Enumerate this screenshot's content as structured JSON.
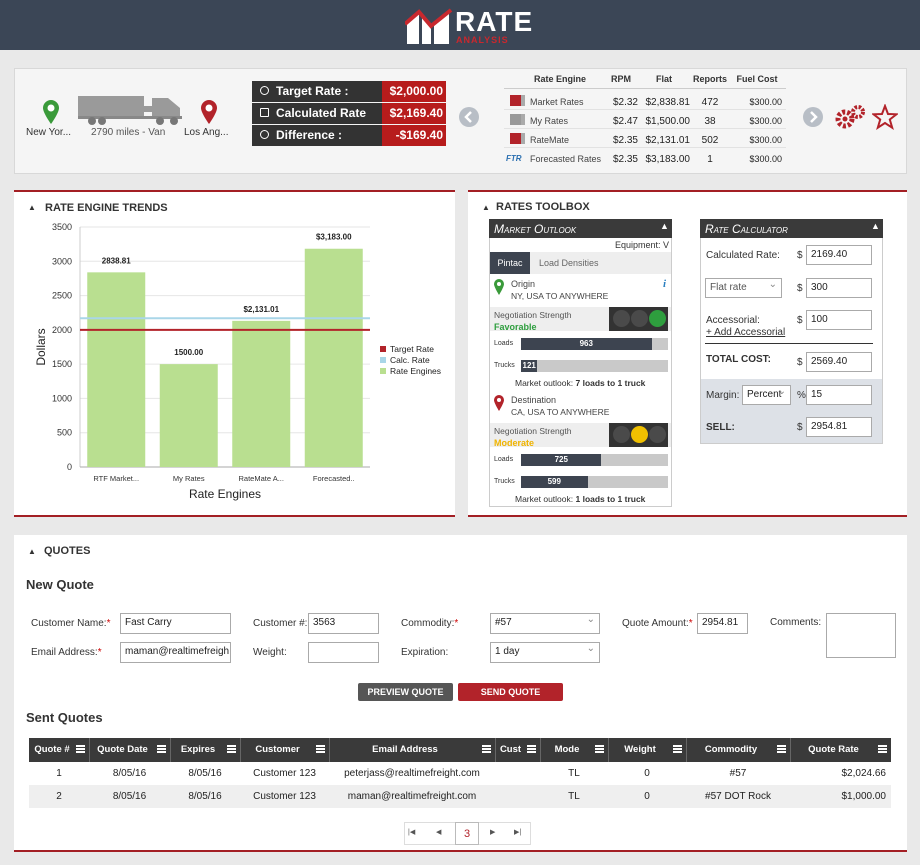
{
  "header": {
    "logo": "RATE",
    "logo_sub": "ANALYSIS"
  },
  "route": {
    "origin": "New Yor...",
    "distance": "2790 miles - Van",
    "destination": "Los Ang..."
  },
  "rates": [
    {
      "label": "Target Rate :",
      "value": "$2,000.00"
    },
    {
      "label": "Calculated Rate",
      "value": "$2,169.40"
    },
    {
      "label": "Difference :",
      "value": "-$169.40"
    }
  ],
  "engines": {
    "columns": [
      "Rate Engine",
      "RPM",
      "Flat",
      "Reports",
      "Fuel Cost"
    ],
    "rows": [
      {
        "name": "Market Rates",
        "rpm": "$2.32",
        "flat": "$2,838.81",
        "reports": 472,
        "fuel": "$300.00"
      },
      {
        "name": "My Rates",
        "rpm": "$2.47",
        "flat": "$1,500.00",
        "reports": 38,
        "fuel": "$300.00"
      },
      {
        "name": "RateMate",
        "rpm": "$2.35",
        "flat": "$2,131.01",
        "reports": 502,
        "fuel": "$300.00"
      },
      {
        "name": "Forecasted Rates",
        "rpm": "$2.35",
        "flat": "$3,183.00",
        "reports": 1,
        "fuel": "$300.00",
        "badge": "FTR"
      }
    ]
  },
  "chart_data": {
    "type": "bar",
    "title": "RATE ENGINE TRENDS",
    "x_label": "Rate Engines",
    "y_label": "Dollars",
    "categories": [
      "RTF Market...",
      "My Rates",
      "RateMate A...",
      "Forecasted.."
    ],
    "series": [
      {
        "name": "Rate Engines",
        "color": "#b9df90",
        "values": [
          2838.81,
          1500,
          2131.01,
          3183
        ],
        "value_labels": [
          "2838.81",
          "1500.00",
          "$2,131.01",
          "$3,183.00"
        ]
      }
    ],
    "reference_lines": [
      {
        "name": "Target Rate",
        "value": 2000,
        "color": "#b2232a"
      },
      {
        "name": "Calc. Rate",
        "value": 2169.4,
        "color": "#a9d6e8"
      }
    ],
    "ylim": [
      0,
      3500
    ],
    "yticks": [
      0,
      500,
      1000,
      1500,
      2000,
      2500,
      3000,
      3500
    ],
    "grid": true
  },
  "toolbox": {
    "title": "RATES TOOLBOX",
    "outlook": {
      "title": "Market Outlook",
      "equipment": "Equipment: V",
      "tabs": [
        "Pintac",
        "Load Densities"
      ],
      "info": "i",
      "lanes": [
        {
          "label": "Origin",
          "place": "NY, USA TO ANYWHERE",
          "pin_color": "#3a9a3a",
          "strength_label": "Negotiation Strength",
          "strength": "Favorable",
          "strength_color": "#2e9e3e",
          "light": 2,
          "loads_label": "Loads",
          "loads": 963,
          "trucks_label": "Trucks",
          "trucks": 121,
          "outlook_label": "Market outlook:",
          "outlook": "7 loads to 1 truck"
        },
        {
          "label": "Destination",
          "place": "CA, USA TO ANYWHERE",
          "pin_color": "#b2232a",
          "strength_label": "Negotiation Strength",
          "strength": "Moderate",
          "strength_color": "#f0b400",
          "light": 1,
          "loads_label": "Loads",
          "loads": 725,
          "trucks_label": "Trucks",
          "trucks": 599,
          "outlook_label": "Market outlook:",
          "outlook": "1 loads to 1 truck"
        }
      ]
    },
    "calculator": {
      "title": "Rate Calculator",
      "currency": "$",
      "percent_sign": "%",
      "calc_label": "Calculated Rate:",
      "calc_value": "2169.40",
      "rate_type": "Flat rate",
      "rate_value": "300",
      "acc_label": "Accessorial:",
      "acc_link": "+ Add Accessorial",
      "acc_value": "100",
      "total_label": "TOTAL COST:",
      "total_value": "2569.40",
      "margin_label": "Margin:",
      "margin_type": "Percent",
      "margin_value": "15",
      "sell_label": "SELL:",
      "sell_value": "2954.81"
    }
  },
  "quotes": {
    "title": "QUOTES",
    "new_title": "New Quote",
    "required_mark": "*",
    "form": {
      "customer_name_label": "Customer Name:",
      "customer_name": "Fast Carry",
      "customer_no_label": "Customer #:",
      "customer_no": "3563",
      "commodity_label": "Commodity:",
      "commodity": "#57",
      "amount_label": "Quote Amount:",
      "amount": "2954.81",
      "comments_label": "Comments:",
      "email_label": "Email Address:",
      "email": "maman@realtimefreigh",
      "weight_label": "Weight:",
      "expiration_label": "Expiration:",
      "expiration": "1 day"
    },
    "preview_button": "PREVIEW QUOTE",
    "send_button": "SEND QUOTE",
    "sent_title": "Sent Quotes",
    "columns": [
      {
        "key": "id",
        "label": "Quote #"
      },
      {
        "key": "quote_date",
        "label": "Quote Date"
      },
      {
        "key": "expires",
        "label": "Expires"
      },
      {
        "key": "customer",
        "label": "Customer"
      },
      {
        "key": "email",
        "label": "Email Address"
      },
      {
        "key": "cust",
        "label": "Cust"
      },
      {
        "key": "mode",
        "label": "Mode"
      },
      {
        "key": "weight",
        "label": "Weight"
      },
      {
        "key": "commodity",
        "label": "Commodity"
      },
      {
        "key": "quote_rate",
        "label": "Quote Rate"
      }
    ],
    "rows": [
      {
        "id": 1,
        "quote_date": "8/05/16",
        "expires": "8/05/16",
        "customer": "Customer 123",
        "email": "peterjass@realtimefreight.com",
        "mode": "TL",
        "weight": 0,
        "commodity": "#57",
        "quote_rate": "$2,024.66"
      },
      {
        "id": 2,
        "quote_date": "8/05/16",
        "expires": "8/05/16",
        "customer": "Customer 123",
        "email": "maman@realtimefreight.com",
        "mode": "TL",
        "weight": 0,
        "commodity": "#57 DOT Rock",
        "quote_rate": "$1,000.00"
      }
    ],
    "page": 3
  }
}
